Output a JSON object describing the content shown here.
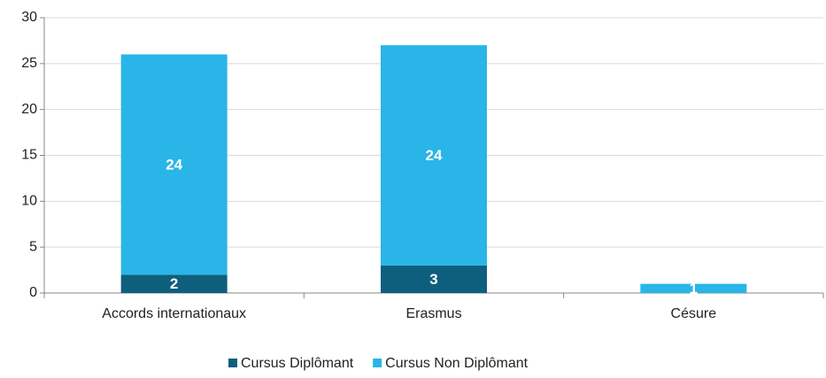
{
  "chart_data": {
    "type": "stacked_bar",
    "categories": [
      "Accords internationaux",
      "Erasmus",
      "Césure"
    ],
    "series": [
      {
        "name": "Cursus Diplômant",
        "color": "#0e5f7e",
        "values": [
          2,
          3,
          null
        ]
      },
      {
        "name": "Cursus Non Diplômant",
        "color": "#29b5e8",
        "values": [
          24,
          24,
          1
        ]
      }
    ],
    "ylim": [
      0,
      30
    ],
    "yticks": [
      0,
      5,
      10,
      15,
      20,
      25,
      30
    ],
    "grid": true,
    "legend": "bottom"
  }
}
